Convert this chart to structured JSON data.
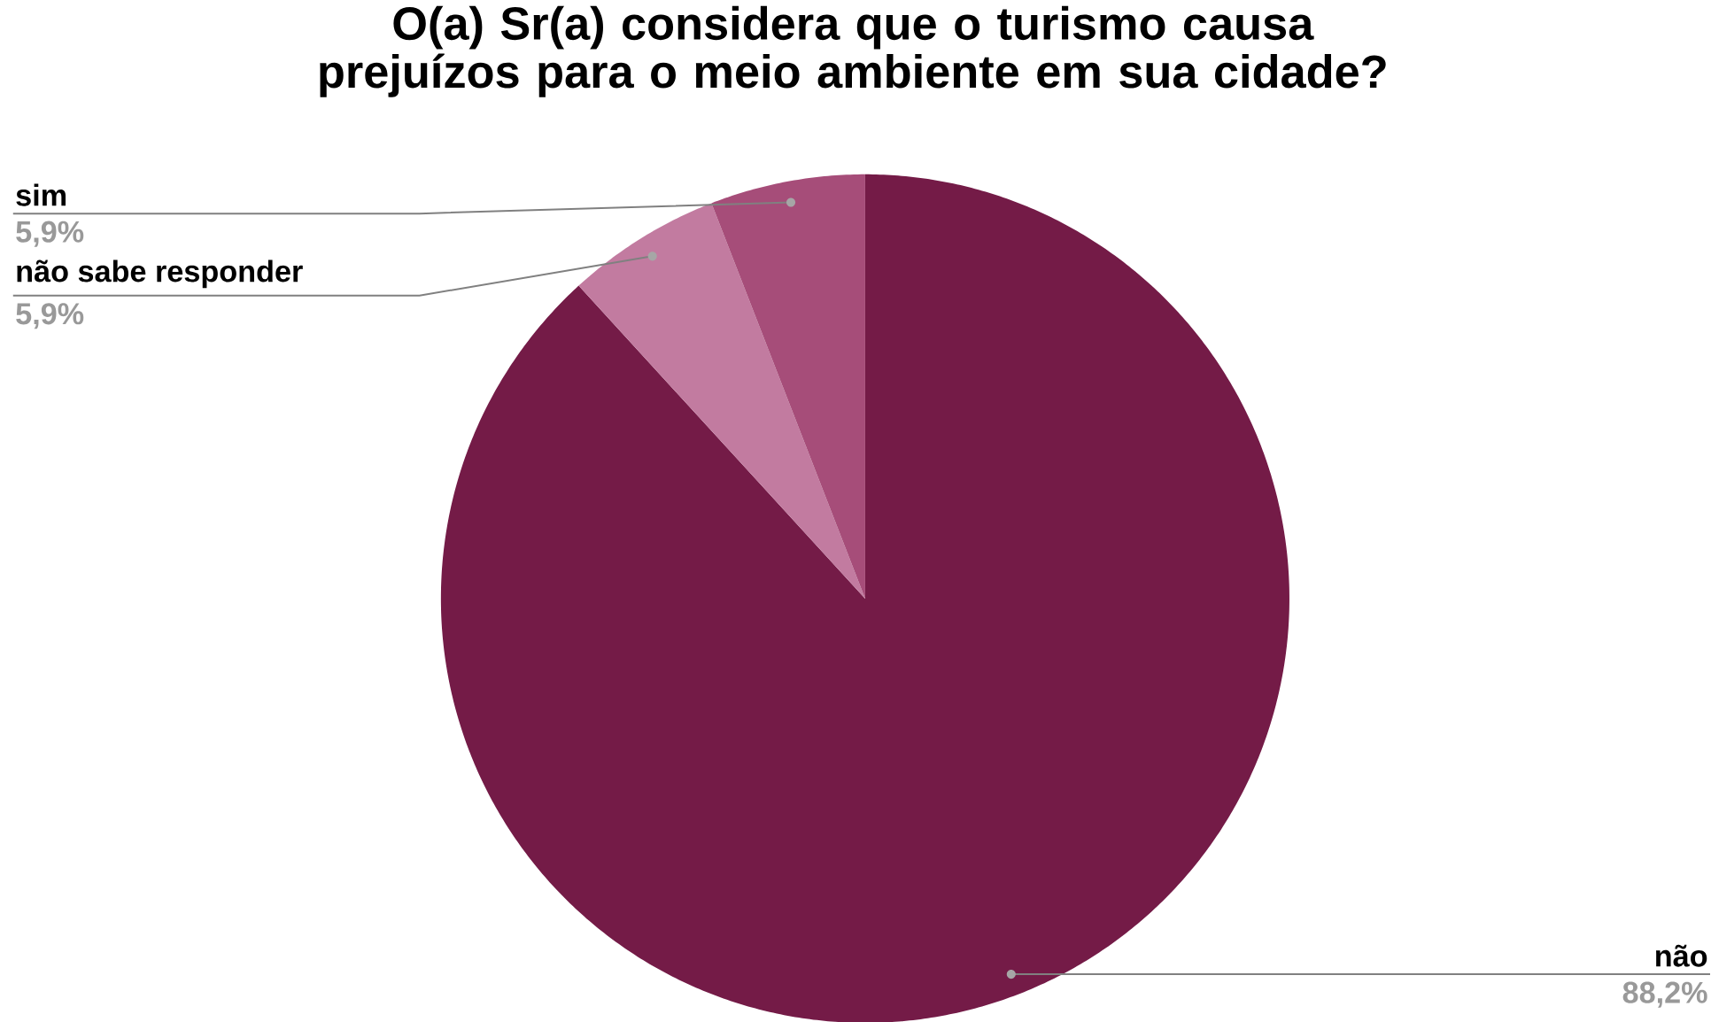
{
  "chart_data": {
    "type": "pie",
    "title": "O(a) Sr(a) considera que o turismo causa prejuízos para o meio ambiente em sua cidade?",
    "categories": [
      "não",
      "não sabe responder",
      "sim"
    ],
    "values": [
      88.2,
      5.9,
      5.9
    ],
    "colors": [
      "#741b47",
      "#c27ba0",
      "#a64d79"
    ],
    "value_labels": [
      "88,2%",
      "5,9%",
      "5,9%"
    ]
  }
}
